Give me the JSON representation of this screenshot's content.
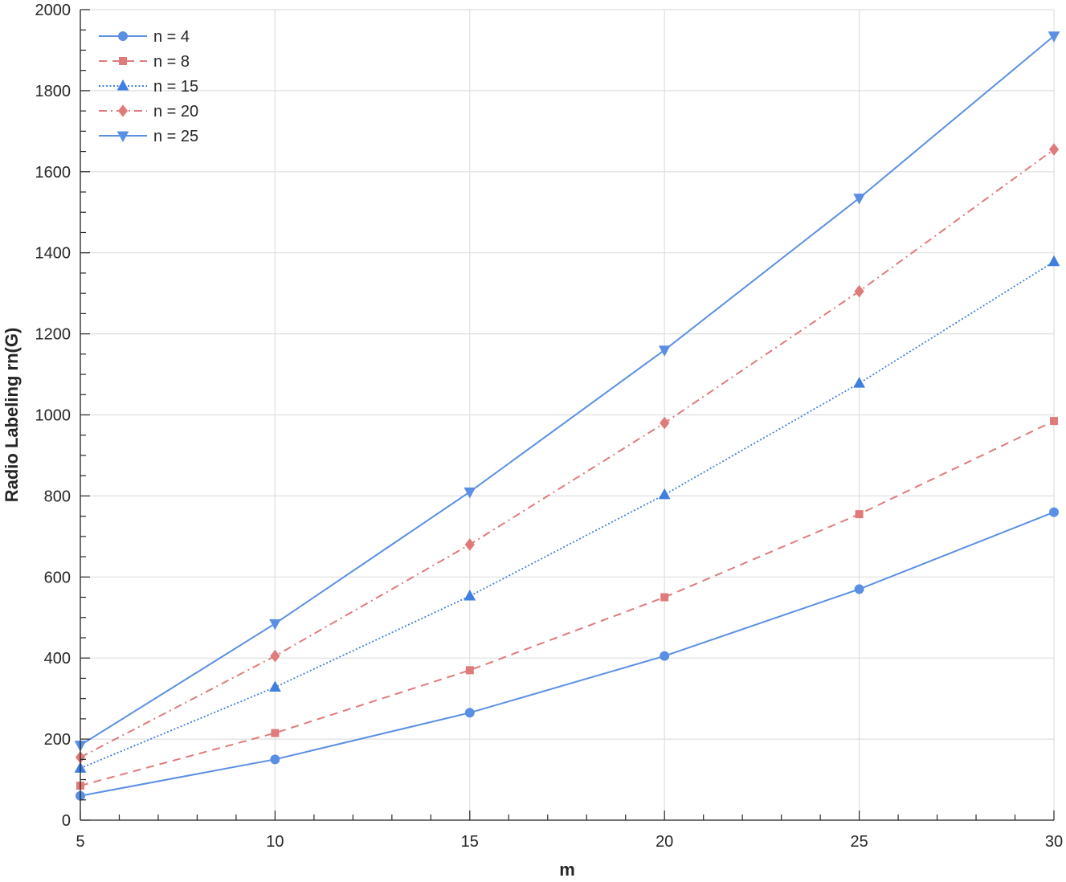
{
  "chart_data": {
    "type": "line",
    "xlabel": "m",
    "ylabel": "Radio Labeling rn(G)",
    "xlim": [
      5,
      30
    ],
    "ylim": [
      0,
      2000
    ],
    "x_major_ticks": [
      5,
      10,
      15,
      20,
      25,
      30
    ],
    "y_major_ticks": [
      0,
      200,
      400,
      600,
      800,
      1000,
      1200,
      1400,
      1600,
      1800,
      2000
    ],
    "grid": true,
    "legend_position": "top-left",
    "x": [
      5,
      10,
      15,
      20,
      25,
      30
    ],
    "series": [
      {
        "name": "n = 4",
        "values": [
          60,
          150,
          265,
          405,
          570,
          760
        ],
        "color": "#5b8fe3",
        "dash": "solid",
        "marker": "circle"
      },
      {
        "name": "n = 8",
        "values": [
          85,
          215,
          370,
          550,
          755,
          985
        ],
        "color": "#e07b7b",
        "dash": "dashed",
        "marker": "square"
      },
      {
        "name": "n = 15",
        "values": [
          128,
          328,
          553,
          803,
          1078,
          1378
        ],
        "color": "#3f7fe0",
        "dash": "dotted",
        "marker": "triangle-up"
      },
      {
        "name": "n = 20",
        "values": [
          155,
          405,
          680,
          980,
          1305,
          1655
        ],
        "color": "#e07b7b",
        "dash": "dashdot",
        "marker": "diamond"
      },
      {
        "name": "n = 25",
        "values": [
          185,
          485,
          810,
          1160,
          1535,
          1935
        ],
        "color": "#5b8fe3",
        "dash": "solid",
        "marker": "triangle-down"
      }
    ]
  }
}
